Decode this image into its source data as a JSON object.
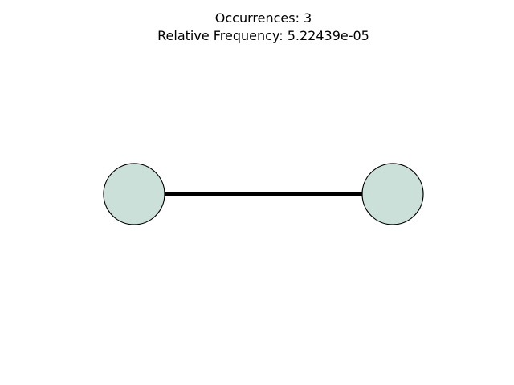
{
  "title": {
    "line1": "Occurrences: 3",
    "line2": "Relative Frequency: 5.22439e-05"
  },
  "graph": {
    "nodes": [
      {
        "id": "node-left"
      },
      {
        "id": "node-right"
      }
    ],
    "edges": [
      {
        "from": "node-left",
        "to": "node-right"
      }
    ]
  },
  "colors": {
    "node_fill": "#cbe0d8",
    "node_stroke": "#000000",
    "edge": "#000000",
    "background": "#ffffff"
  }
}
